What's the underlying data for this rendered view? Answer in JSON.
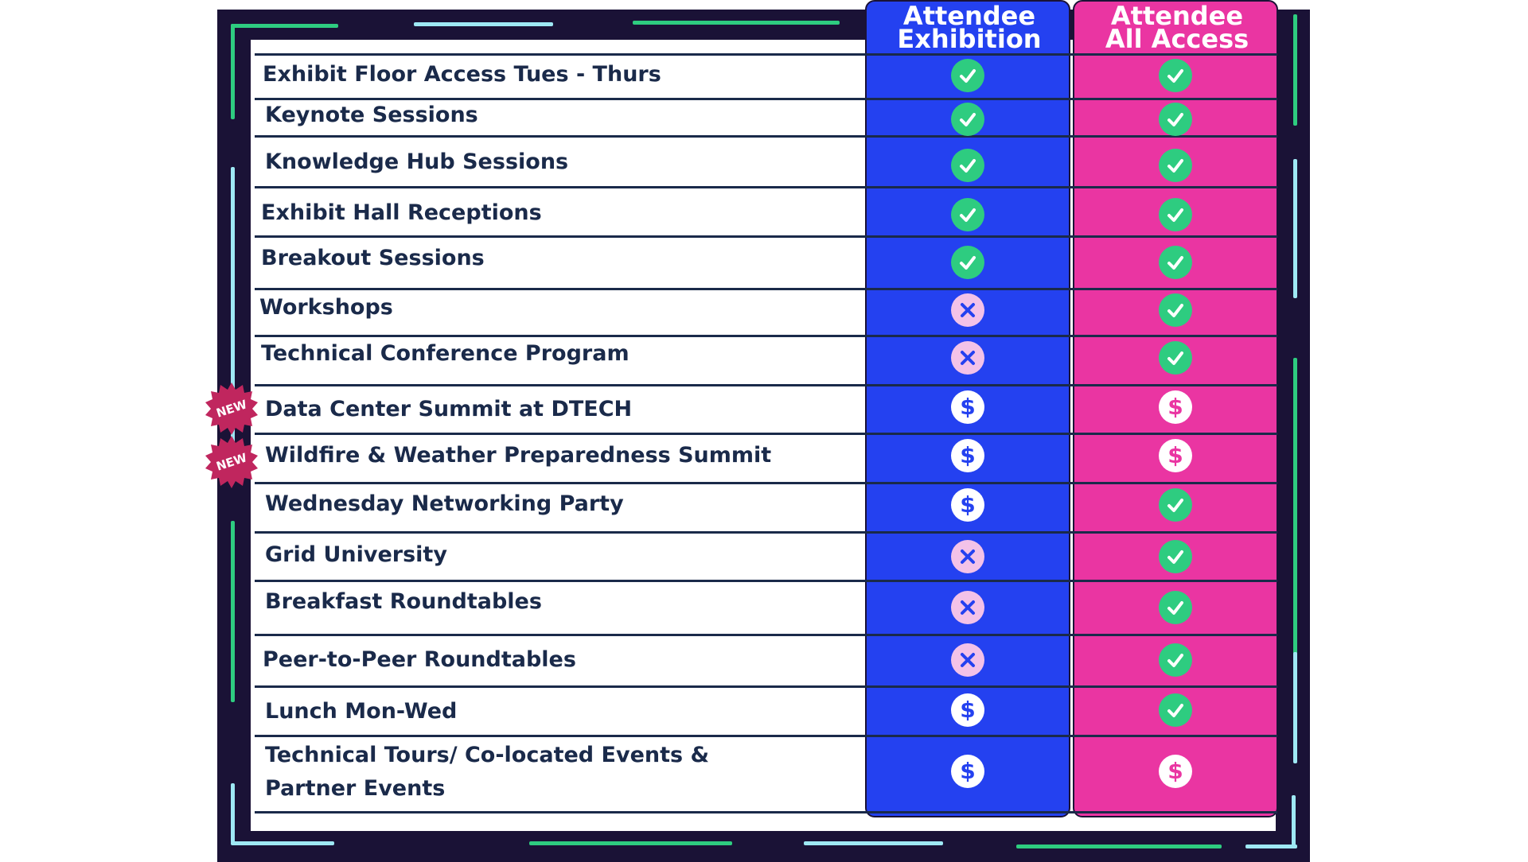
{
  "columns": [
    {
      "line1": "Attendee",
      "line2": "Exhibition",
      "color": "#2441f0"
    },
    {
      "line1": "Attendee",
      "line2": "All Access",
      "color": "#ea35a2"
    }
  ],
  "badge_text": "NEW",
  "colors": {
    "frame": "#1a1236",
    "check": "#2ecc80",
    "cross_bg": "#f3c2e8",
    "cross_fg": "#2441f0",
    "dollar_blue": "#2441f0",
    "dollar_pink": "#ea35a2",
    "text": "#1a2a4a"
  },
  "rows": [
    {
      "label": "Exhibit Floor Access Tues - Thurs",
      "exhibition": "check",
      "all_access": "check",
      "new": false
    },
    {
      "label": "Keynote Sessions",
      "exhibition": "check",
      "all_access": "check",
      "new": false
    },
    {
      "label": "Knowledge Hub Sessions",
      "exhibition": "check",
      "all_access": "check",
      "new": false
    },
    {
      "label": "Exhibit Hall Receptions",
      "exhibition": "check",
      "all_access": "check",
      "new": false
    },
    {
      "label": "Breakout Sessions",
      "exhibition": "check",
      "all_access": "check",
      "new": false
    },
    {
      "label": "Workshops",
      "exhibition": "cross",
      "all_access": "check",
      "new": false
    },
    {
      "label": "Technical Conference Program",
      "exhibition": "cross",
      "all_access": "check",
      "new": false
    },
    {
      "label": "Data Center Summit at DTECH",
      "exhibition": "dollar",
      "all_access": "dollar",
      "new": true
    },
    {
      "label": "Wildfire & Weather Preparedness Summit",
      "exhibition": "dollar",
      "all_access": "dollar",
      "new": true
    },
    {
      "label": "Wednesday Networking Party",
      "exhibition": "dollar",
      "all_access": "check",
      "new": false
    },
    {
      "label": "Grid University",
      "exhibition": "cross",
      "all_access": "check",
      "new": false
    },
    {
      "label": "Breakfast Roundtables",
      "exhibition": "cross",
      "all_access": "check",
      "new": false
    },
    {
      "label": "Peer-to-Peer Roundtables",
      "exhibition": "cross",
      "all_access": "check",
      "new": false
    },
    {
      "label": "Lunch Mon-Wed",
      "exhibition": "dollar",
      "all_access": "check",
      "new": false
    },
    {
      "label": "Technical Tours/ Co-located Events & Partner Events",
      "exhibition": "dollar",
      "all_access": "dollar",
      "new": false
    }
  ]
}
